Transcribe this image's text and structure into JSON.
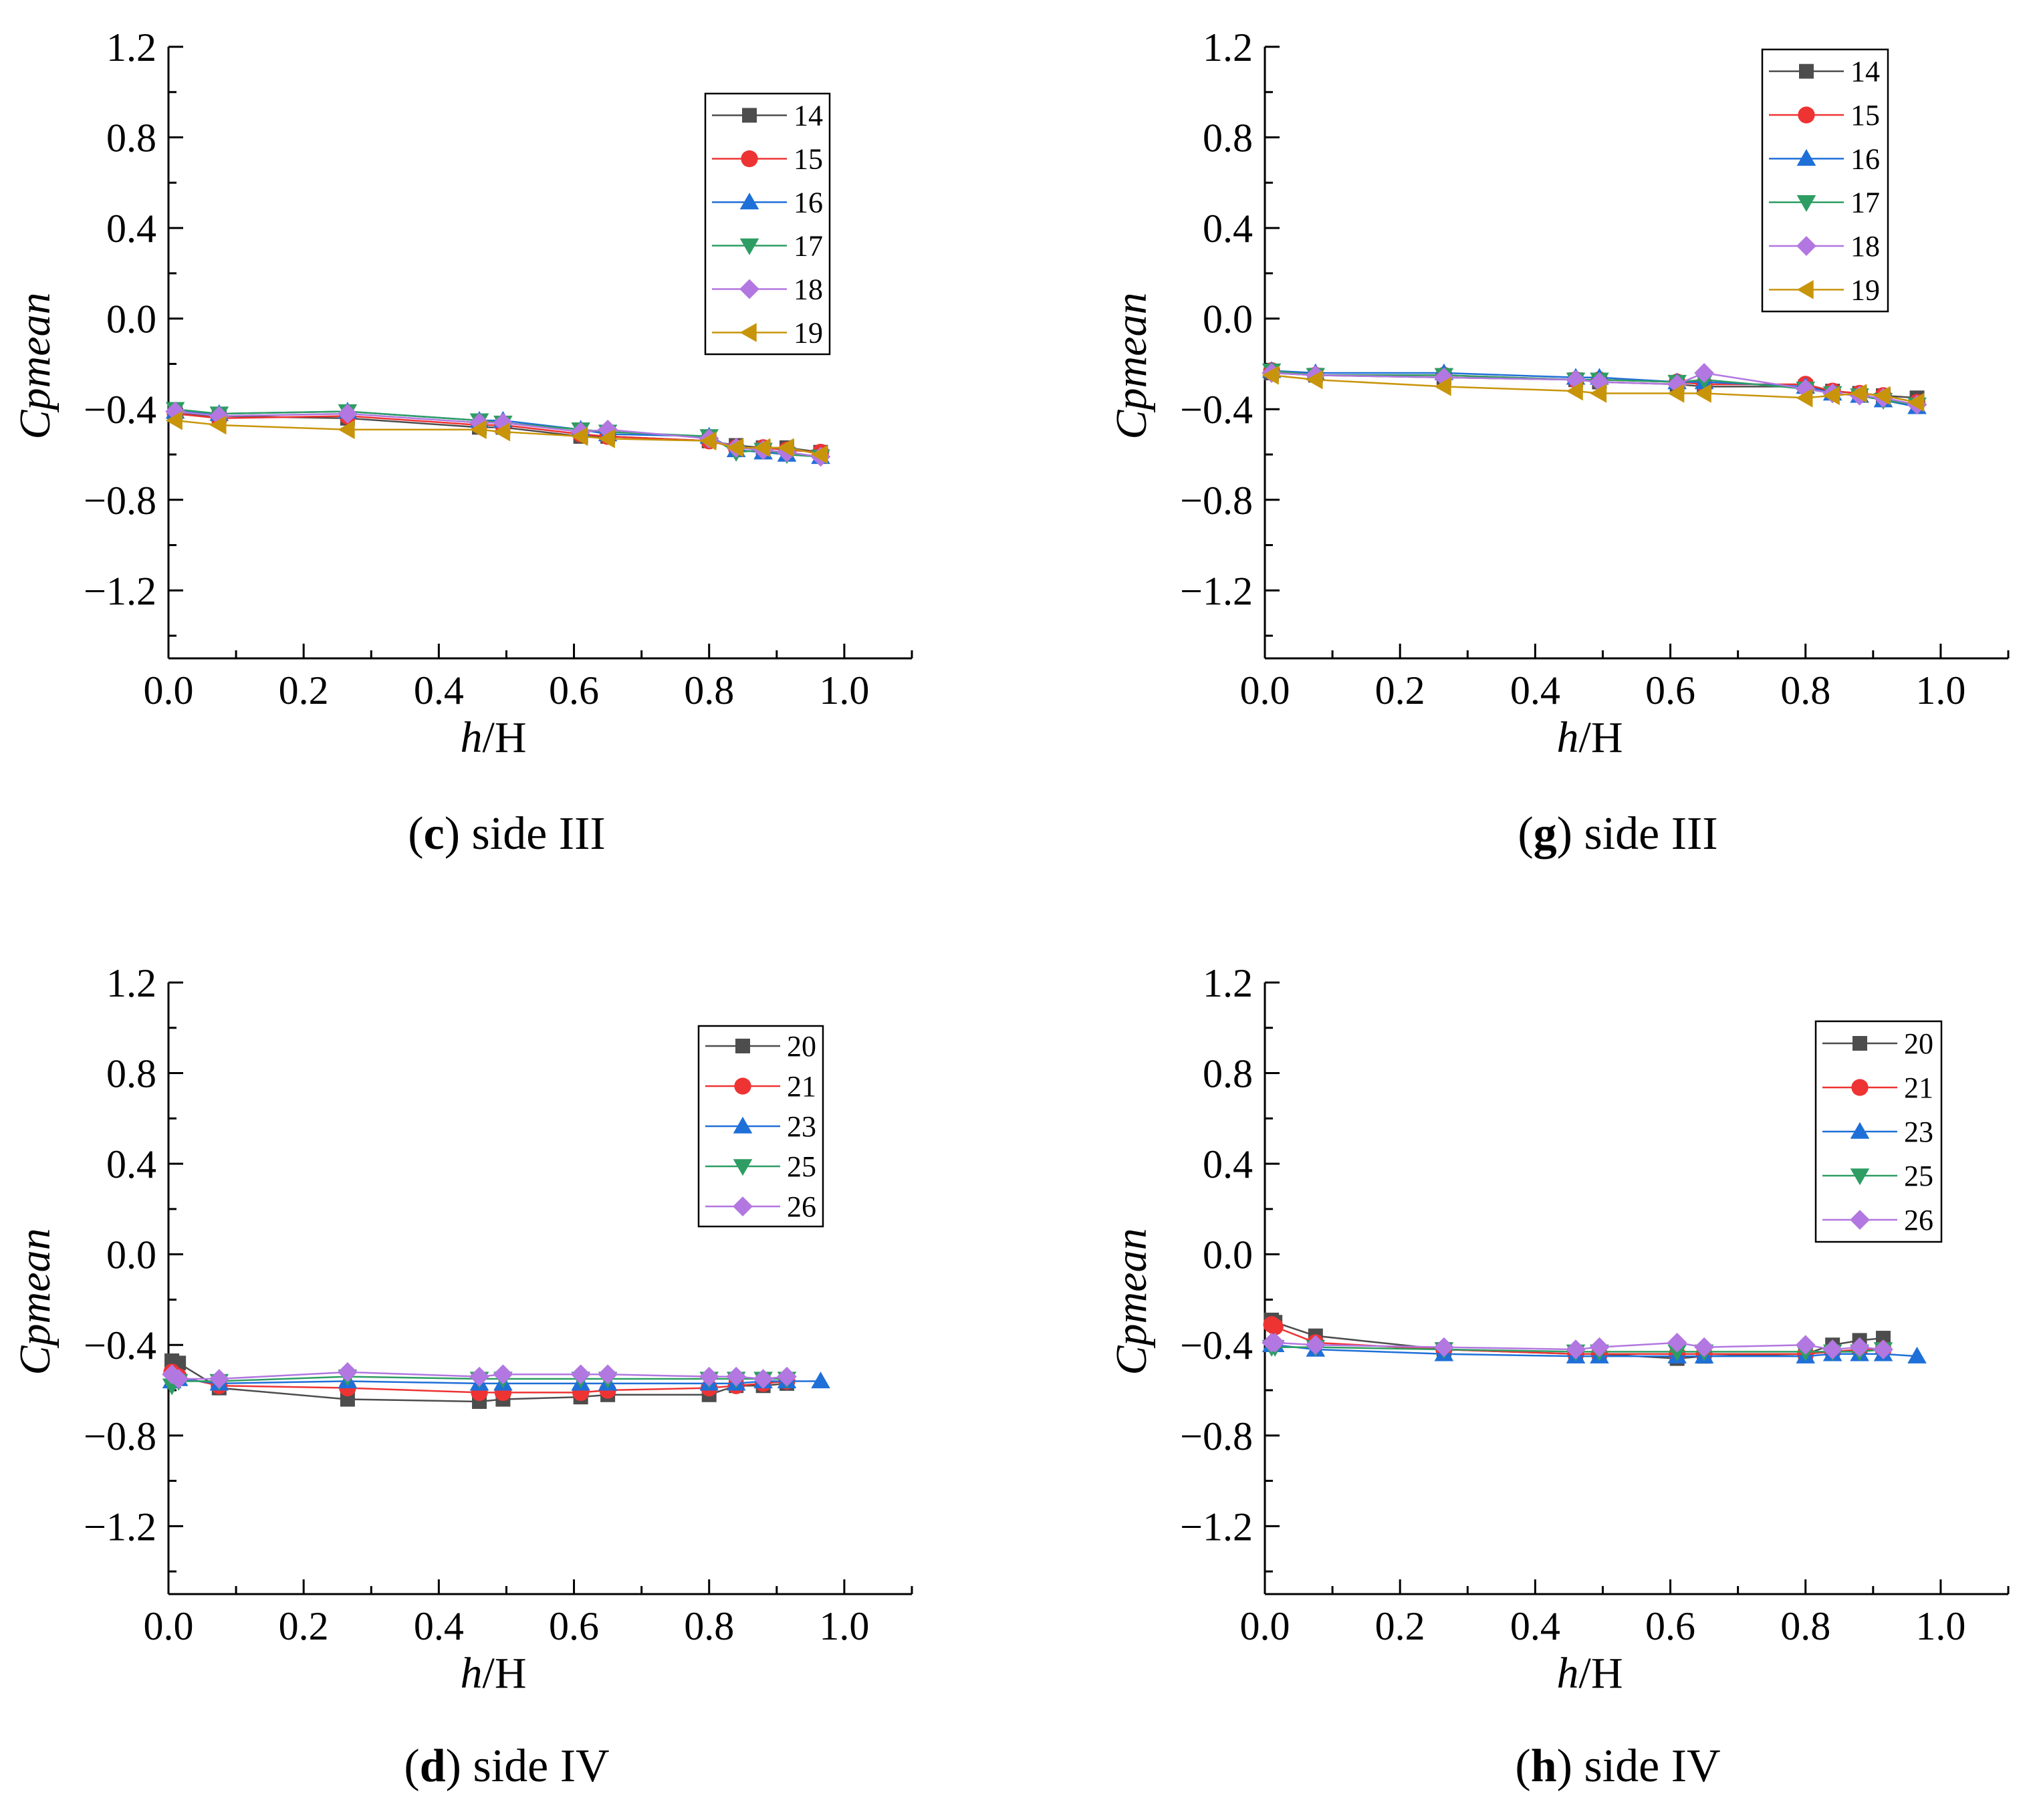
{
  "series_styles": {
    "14": {
      "color": "#4d4d4d",
      "marker": "square"
    },
    "15": {
      "color": "#ee3333",
      "marker": "circle"
    },
    "16": {
      "color": "#1f6fd8",
      "marker": "triangle-up"
    },
    "17": {
      "color": "#2e9d63",
      "marker": "triangle-down"
    },
    "18": {
      "color": "#b277e0",
      "marker": "diamond"
    },
    "19": {
      "color": "#c8950a",
      "marker": "triangle-left"
    },
    "20": {
      "color": "#4d4d4d",
      "marker": "square"
    },
    "21": {
      "color": "#ee3333",
      "marker": "circle"
    },
    "23": {
      "color": "#1f6fd8",
      "marker": "triangle-up"
    },
    "25": {
      "color": "#2e9d63",
      "marker": "triangle-down"
    },
    "26": {
      "color": "#b277e0",
      "marker": "diamond"
    }
  },
  "chart_data": [
    {
      "id": "c",
      "type": "line",
      "caption_letter": "c",
      "caption_text": " side III",
      "xlabel_italic": "h",
      "xlabel_rest": "/H",
      "ylabel": "Cpmean",
      "xlim": [
        0,
        1.1
      ],
      "ylim": [
        -1.5,
        1.2
      ],
      "xticks": [
        "0.0",
        "0.2",
        "0.4",
        "0.6",
        "0.8",
        "1.0"
      ],
      "yticks": [
        "1.2",
        "0.8",
        "0.4",
        "0.0",
        "−0.4",
        "−0.8",
        "−1.2"
      ],
      "x": [
        0.01,
        0.075,
        0.265,
        0.46,
        0.495,
        0.61,
        0.65,
        0.8,
        0.84,
        0.88,
        0.915,
        0.965
      ],
      "series": [
        {
          "name": "14",
          "values": [
            -0.42,
            -0.43,
            -0.44,
            -0.48,
            -0.48,
            -0.52,
            -0.52,
            -0.54,
            -0.56,
            -0.57,
            -0.57,
            -0.59
          ]
        },
        {
          "name": "15",
          "values": [
            -0.42,
            -0.44,
            -0.43,
            -0.47,
            -0.47,
            -0.51,
            -0.52,
            -0.54,
            -0.57,
            -0.57,
            -0.58,
            -0.59
          ]
        },
        {
          "name": "16",
          "values": [
            -0.41,
            -0.42,
            -0.41,
            -0.45,
            -0.45,
            -0.49,
            -0.51,
            -0.52,
            -0.58,
            -0.59,
            -0.6,
            -0.61
          ]
        },
        {
          "name": "17",
          "values": [
            -0.4,
            -0.42,
            -0.41,
            -0.45,
            -0.46,
            -0.49,
            -0.5,
            -0.52,
            -0.59,
            -0.58,
            -0.6,
            -0.61
          ]
        },
        {
          "name": "18",
          "values": [
            -0.41,
            -0.43,
            -0.42,
            -0.46,
            -0.46,
            -0.5,
            -0.49,
            -0.53,
            -0.57,
            -0.58,
            -0.59,
            -0.61
          ]
        },
        {
          "name": "19",
          "values": [
            -0.45,
            -0.47,
            -0.49,
            -0.49,
            -0.5,
            -0.52,
            -0.53,
            -0.54,
            -0.57,
            -0.57,
            -0.57,
            -0.6
          ]
        }
      ]
    },
    {
      "id": "g",
      "type": "line",
      "caption_letter": "g",
      "caption_text": " side III",
      "xlabel_italic": "h",
      "xlabel_rest": "/H",
      "ylabel": "Cpmean",
      "xlim": [
        0,
        1.1
      ],
      "ylim": [
        -1.5,
        1.2
      ],
      "xticks": [
        "0.0",
        "0.2",
        "0.4",
        "0.6",
        "0.8",
        "1.0"
      ],
      "yticks": [
        "1.2",
        "0.8",
        "0.4",
        "0.0",
        "−0.4",
        "−0.8",
        "−1.2"
      ],
      "x": [
        0.01,
        0.075,
        0.265,
        0.46,
        0.495,
        0.61,
        0.65,
        0.8,
        0.84,
        0.88,
        0.915,
        0.965
      ],
      "series": [
        {
          "name": "14",
          "values": [
            -0.24,
            -0.25,
            -0.26,
            -0.27,
            -0.28,
            -0.29,
            -0.3,
            -0.3,
            -0.32,
            -0.33,
            -0.34,
            -0.35
          ]
        },
        {
          "name": "15",
          "values": [
            -0.23,
            -0.25,
            -0.25,
            -0.27,
            -0.27,
            -0.28,
            -0.29,
            -0.29,
            -0.32,
            -0.33,
            -0.34,
            -0.37
          ]
        },
        {
          "name": "16",
          "values": [
            -0.23,
            -0.24,
            -0.24,
            -0.26,
            -0.26,
            -0.28,
            -0.28,
            -0.3,
            -0.33,
            -0.34,
            -0.36,
            -0.39
          ]
        },
        {
          "name": "17",
          "values": [
            -0.23,
            -0.25,
            -0.25,
            -0.27,
            -0.27,
            -0.28,
            -0.27,
            -0.31,
            -0.33,
            -0.34,
            -0.36,
            -0.38
          ]
        },
        {
          "name": "18",
          "values": [
            -0.24,
            -0.25,
            -0.26,
            -0.27,
            -0.28,
            -0.29,
            -0.24,
            -0.31,
            -0.33,
            -0.34,
            -0.35,
            -0.38
          ]
        },
        {
          "name": "19",
          "values": [
            -0.25,
            -0.27,
            -0.3,
            -0.32,
            -0.33,
            -0.33,
            -0.33,
            -0.35,
            -0.34,
            -0.33,
            -0.34,
            -0.37
          ]
        }
      ]
    },
    {
      "id": "d",
      "type": "line",
      "caption_letter": "d",
      "caption_text": " side IV",
      "xlabel_italic": "h",
      "xlabel_rest": "/H",
      "ylabel": "Cpmean",
      "xlim": [
        0,
        1.1
      ],
      "ylim": [
        -1.5,
        1.2
      ],
      "xticks": [
        "0.0",
        "0.2",
        "0.4",
        "0.6",
        "0.8",
        "1.0"
      ],
      "yticks": [
        "1.2",
        "0.8",
        "0.4",
        "0.0",
        "−0.4",
        "−0.8",
        "−1.2"
      ],
      "x": [
        0.005,
        0.015,
        0.075,
        0.265,
        0.46,
        0.495,
        0.61,
        0.65,
        0.8,
        0.84,
        0.88,
        0.915,
        0.965
      ],
      "series": [
        {
          "name": "20",
          "values": [
            -0.47,
            -0.48,
            -0.59,
            -0.64,
            -0.65,
            -0.64,
            -0.63,
            -0.62,
            -0.62,
            -0.58,
            -0.58,
            -0.57,
            null
          ]
        },
        {
          "name": "21",
          "values": [
            -0.52,
            -0.54,
            -0.58,
            -0.59,
            -0.61,
            -0.61,
            -0.61,
            -0.6,
            -0.59,
            -0.58,
            -0.57,
            -0.56,
            null
          ]
        },
        {
          "name": "23",
          "values": [
            -0.56,
            -0.55,
            -0.57,
            -0.56,
            -0.57,
            -0.57,
            -0.57,
            -0.57,
            -0.57,
            -0.57,
            -0.56,
            -0.56,
            -0.56
          ]
        },
        {
          "name": "25",
          "values": [
            -0.58,
            -0.56,
            -0.56,
            -0.54,
            -0.55,
            -0.55,
            -0.55,
            -0.55,
            -0.55,
            -0.55,
            -0.55,
            -0.55,
            null
          ]
        },
        {
          "name": "26",
          "values": [
            -0.53,
            -0.55,
            -0.55,
            -0.52,
            -0.54,
            -0.53,
            -0.53,
            -0.53,
            -0.54,
            -0.54,
            -0.55,
            -0.54,
            null
          ]
        }
      ]
    },
    {
      "id": "h",
      "type": "line",
      "caption_letter": "h",
      "caption_text": " side IV",
      "xlabel_italic": "h",
      "xlabel_rest": "/H",
      "ylabel": "Cpmean",
      "xlim": [
        0,
        1.1
      ],
      "ylim": [
        -1.5,
        1.2
      ],
      "xticks": [
        "0.0",
        "0.2",
        "0.4",
        "0.6",
        "0.8",
        "1.0"
      ],
      "yticks": [
        "1.2",
        "0.8",
        "0.4",
        "0.0",
        "−0.4",
        "−0.8",
        "−1.2"
      ],
      "x": [
        0.01,
        0.015,
        0.075,
        0.265,
        0.46,
        0.495,
        0.61,
        0.65,
        0.8,
        0.84,
        0.88,
        0.915,
        0.965
      ],
      "series": [
        {
          "name": "20",
          "values": [
            -0.29,
            -0.3,
            -0.36,
            -0.42,
            -0.44,
            -0.44,
            -0.46,
            -0.45,
            -0.44,
            -0.4,
            -0.38,
            -0.37,
            null
          ]
        },
        {
          "name": "21",
          "values": [
            -0.31,
            -0.32,
            -0.39,
            -0.42,
            -0.44,
            -0.44,
            -0.44,
            -0.44,
            -0.44,
            -0.43,
            -0.42,
            -0.42,
            null
          ]
        },
        {
          "name": "23",
          "values": [
            -0.4,
            -0.4,
            -0.42,
            -0.44,
            -0.45,
            -0.45,
            -0.45,
            -0.45,
            -0.45,
            -0.44,
            -0.44,
            -0.44,
            -0.45
          ]
        },
        {
          "name": "25",
          "values": [
            -0.41,
            -0.41,
            -0.41,
            -0.42,
            -0.43,
            -0.43,
            -0.43,
            -0.43,
            -0.43,
            -0.43,
            -0.43,
            -0.42,
            null
          ]
        },
        {
          "name": "26",
          "values": [
            -0.39,
            -0.39,
            -0.4,
            -0.41,
            -0.42,
            -0.41,
            -0.39,
            -0.41,
            -0.4,
            -0.42,
            -0.41,
            -0.42,
            null
          ]
        }
      ]
    }
  ]
}
